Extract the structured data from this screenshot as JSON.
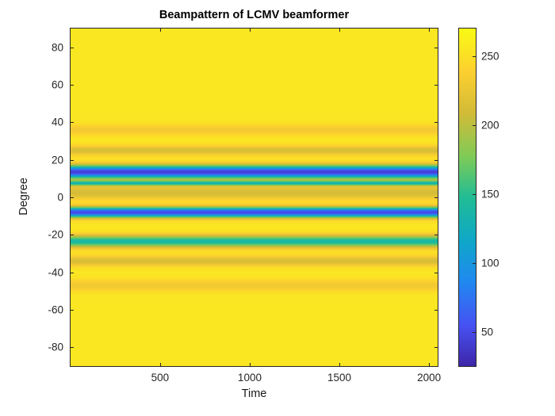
{
  "figure": {
    "background": "#ffffff",
    "axis_color": "#262626"
  },
  "chart_data": {
    "type": "heatmap",
    "title": "Beampattern of LCMV beamformer",
    "xlabel": "Time",
    "ylabel": "Degree",
    "xlim": [
      1,
      2048
    ],
    "ylim": [
      -90,
      90
    ],
    "clim": [
      25,
      270
    ],
    "x_ticks": [
      500,
      1000,
      1500,
      2000
    ],
    "y_ticks": [
      80,
      60,
      40,
      20,
      0,
      -20,
      -40,
      -60,
      -80
    ],
    "colorbar_ticks": [
      50,
      100,
      150,
      200,
      250
    ],
    "grid": false,
    "legend": false,
    "colorbar_position": "right",
    "background_value": 255,
    "bands": [
      {
        "center_deg": 36,
        "sigma_deg": 2.0,
        "value": 231,
        "appearance": "light-amber"
      },
      {
        "center_deg": 25,
        "sigma_deg": 1.8,
        "value": 212,
        "appearance": "amber"
      },
      {
        "center_deg": 13.5,
        "sigma_deg": 2.4,
        "value": 42,
        "appearance": "blue-null"
      },
      {
        "center_deg": 7.5,
        "sigma_deg": 0.9,
        "value": 145,
        "appearance": "teal-thin"
      },
      {
        "center_deg": 2.5,
        "sigma_deg": 2.6,
        "value": 210,
        "appearance": "amber"
      },
      {
        "center_deg": -8,
        "sigma_deg": 1.9,
        "value": 48,
        "appearance": "blue-null"
      },
      {
        "center_deg": -23.5,
        "sigma_deg": 2.2,
        "value": 138,
        "appearance": "teal-green"
      },
      {
        "center_deg": -34,
        "sigma_deg": 1.9,
        "value": 212,
        "appearance": "amber"
      },
      {
        "center_deg": -47,
        "sigma_deg": 2.2,
        "value": 230,
        "appearance": "light-amber"
      }
    ],
    "colormap": {
      "name": "parula",
      "stops": [
        [
          0.0,
          "#3e26a8"
        ],
        [
          0.12,
          "#4752f3"
        ],
        [
          0.25,
          "#2089f0"
        ],
        [
          0.37,
          "#0fa7ca"
        ],
        [
          0.5,
          "#21bd95"
        ],
        [
          0.62,
          "#7fcb57"
        ],
        [
          0.75,
          "#d3bb38"
        ],
        [
          0.87,
          "#fccf30"
        ],
        [
          1.0,
          "#f9fb14"
        ]
      ]
    }
  }
}
